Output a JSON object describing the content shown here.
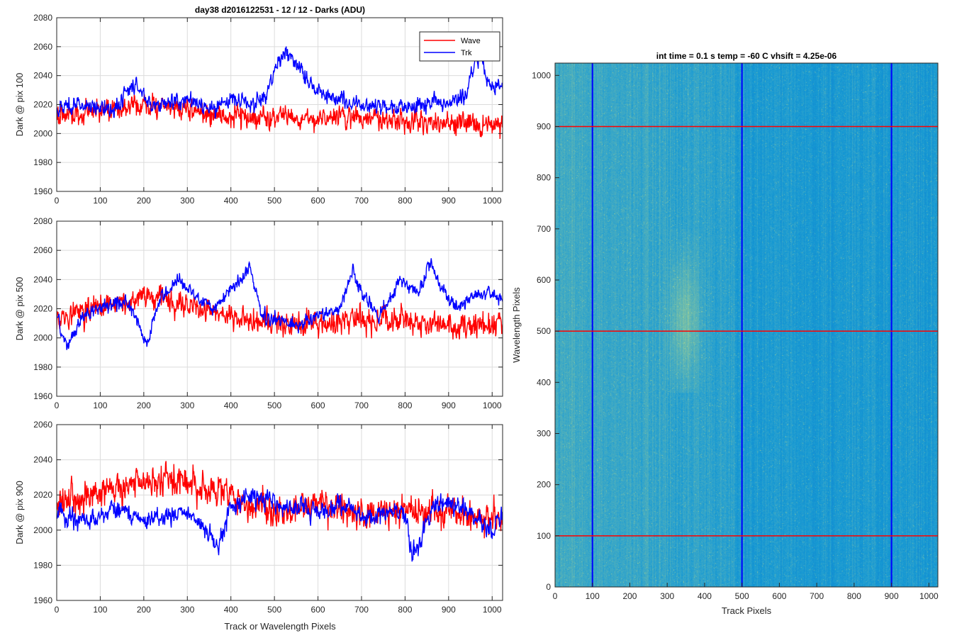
{
  "figure": {
    "title": "day38 d2016122531 - 12 / 12 - Darks (ADU)",
    "xlabel": "Track or Wavelength Pixels"
  },
  "colors": {
    "wave": "#ff0000",
    "trk": "#0000ff",
    "grid": "#dcdcdc",
    "image_base": "#1a8bc4"
  },
  "chart_data": [
    {
      "type": "line",
      "ylabel": "Dark @ pix 100",
      "xlim": [
        0,
        1024
      ],
      "ylim": [
        1960,
        2080
      ],
      "xticks": [
        0,
        100,
        200,
        300,
        400,
        500,
        600,
        700,
        800,
        900,
        1000
      ],
      "yticks": [
        1960,
        1980,
        2000,
        2020,
        2040,
        2060,
        2080
      ],
      "legend": {
        "location": "top-right",
        "entries": [
          "Wave",
          "Trk"
        ]
      },
      "series": [
        {
          "name": "Wave",
          "color": "#ff0000",
          "mean": 2013,
          "noise": 8,
          "anchors": [
            [
              0,
              2012
            ],
            [
              100,
              2016
            ],
            [
              200,
              2020
            ],
            [
              300,
              2016
            ],
            [
              400,
              2012
            ],
            [
              500,
              2010
            ],
            [
              600,
              2010
            ],
            [
              700,
              2012
            ],
            [
              800,
              2010
            ],
            [
              900,
              2008
            ],
            [
              1024,
              2005
            ]
          ]
        },
        {
          "name": "Trk",
          "color": "#0000ff",
          "mean": 2020,
          "noise": 6,
          "anchors": [
            [
              0,
              2018
            ],
            [
              60,
              2020
            ],
            [
              130,
              2017
            ],
            [
              185,
              2035
            ],
            [
              220,
              2018
            ],
            [
              300,
              2024
            ],
            [
              350,
              2016
            ],
            [
              400,
              2024
            ],
            [
              450,
              2020
            ],
            [
              480,
              2025
            ],
            [
              510,
              2052
            ],
            [
              530,
              2055
            ],
            [
              560,
              2045
            ],
            [
              600,
              2028
            ],
            [
              650,
              2025
            ],
            [
              700,
              2020
            ],
            [
              760,
              2018
            ],
            [
              800,
              2020
            ],
            [
              900,
              2022
            ],
            [
              940,
              2025
            ],
            [
              960,
              2050
            ],
            [
              975,
              2055
            ],
            [
              990,
              2032
            ],
            [
              1024,
              2032
            ]
          ]
        }
      ]
    },
    {
      "type": "line",
      "ylabel": "Dark @ pix 500",
      "xlim": [
        0,
        1024
      ],
      "ylim": [
        1960,
        2080
      ],
      "xticks": [
        0,
        100,
        200,
        300,
        400,
        500,
        600,
        700,
        800,
        900,
        1000
      ],
      "yticks": [
        1960,
        1980,
        2000,
        2020,
        2040,
        2060,
        2080
      ],
      "series": [
        {
          "name": "Wave",
          "color": "#ff0000",
          "mean": 2015,
          "noise": 9,
          "anchors": [
            [
              0,
              2015
            ],
            [
              100,
              2020
            ],
            [
              200,
              2028
            ],
            [
              300,
              2022
            ],
            [
              400,
              2015
            ],
            [
              500,
              2008
            ],
            [
              600,
              2010
            ],
            [
              700,
              2012
            ],
            [
              800,
              2012
            ],
            [
              900,
              2008
            ],
            [
              1024,
              2008
            ]
          ]
        },
        {
          "name": "Trk",
          "color": "#0000ff",
          "mean": 2018,
          "noise": 5,
          "anchors": [
            [
              0,
              2015
            ],
            [
              25,
              1995
            ],
            [
              60,
              2015
            ],
            [
              100,
              2020
            ],
            [
              160,
              2025
            ],
            [
              190,
              2008
            ],
            [
              205,
              1995
            ],
            [
              240,
              2030
            ],
            [
              280,
              2040
            ],
            [
              320,
              2028
            ],
            [
              360,
              2020
            ],
            [
              420,
              2040
            ],
            [
              445,
              2048
            ],
            [
              470,
              2015
            ],
            [
              520,
              2012
            ],
            [
              560,
              2008
            ],
            [
              600,
              2015
            ],
            [
              650,
              2020
            ],
            [
              680,
              2045
            ],
            [
              700,
              2030
            ],
            [
              740,
              2015
            ],
            [
              790,
              2040
            ],
            [
              830,
              2030
            ],
            [
              860,
              2052
            ],
            [
              880,
              2035
            ],
            [
              920,
              2020
            ],
            [
              960,
              2030
            ],
            [
              1000,
              2030
            ],
            [
              1024,
              2025
            ]
          ]
        }
      ]
    },
    {
      "type": "line",
      "ylabel": "Dark @ pix 900",
      "xlim": [
        0,
        1024
      ],
      "ylim": [
        1960,
        2060
      ],
      "xticks": [
        0,
        100,
        200,
        300,
        400,
        500,
        600,
        700,
        800,
        900,
        1000
      ],
      "yticks": [
        1960,
        1980,
        2000,
        2020,
        2040,
        2060
      ],
      "series": [
        {
          "name": "Wave",
          "color": "#ff0000",
          "mean": 2018,
          "noise": 9,
          "anchors": [
            [
              0,
              2015
            ],
            [
              100,
              2022
            ],
            [
              200,
              2028
            ],
            [
              300,
              2028
            ],
            [
              400,
              2018
            ],
            [
              500,
              2010
            ],
            [
              600,
              2015
            ],
            [
              700,
              2010
            ],
            [
              800,
              2012
            ],
            [
              900,
              2010
            ],
            [
              1024,
              2005
            ]
          ]
        },
        {
          "name": "Trk",
          "color": "#0000ff",
          "mean": 2010,
          "noise": 6,
          "anchors": [
            [
              0,
              2010
            ],
            [
              50,
              2005
            ],
            [
              100,
              2008
            ],
            [
              150,
              2012
            ],
            [
              200,
              2005
            ],
            [
              250,
              2008
            ],
            [
              300,
              2010
            ],
            [
              350,
              1998
            ],
            [
              370,
              1990
            ],
            [
              400,
              2012
            ],
            [
              450,
              2020
            ],
            [
              500,
              2015
            ],
            [
              550,
              2012
            ],
            [
              600,
              2010
            ],
            [
              650,
              2015
            ],
            [
              700,
              2008
            ],
            [
              750,
              2010
            ],
            [
              800,
              2010
            ],
            [
              815,
              1985
            ],
            [
              830,
              1990
            ],
            [
              860,
              2012
            ],
            [
              900,
              2015
            ],
            [
              950,
              2010
            ],
            [
              1000,
              2000
            ],
            [
              1024,
              2008
            ]
          ]
        }
      ]
    },
    {
      "type": "heatmap",
      "title": "int time = 0.1 s   temp = -60 C   vhsift = 4.25e-06",
      "xlabel": "Track Pixels",
      "ylabel": "Wavelength Pixels",
      "xlim": [
        0,
        1024
      ],
      "ylim": [
        0,
        1024
      ],
      "xticks": [
        0,
        100,
        200,
        300,
        400,
        500,
        600,
        700,
        800,
        900,
        1000
      ],
      "yticks": [
        0,
        100,
        200,
        300,
        400,
        500,
        600,
        700,
        800,
        900,
        1000
      ],
      "vertical_lines": {
        "x": [
          100,
          500,
          900
        ],
        "color": "#0000ff"
      },
      "horizontal_lines": {
        "y": [
          100,
          500,
          900
        ],
        "color": "#ff0000"
      },
      "bright_region": {
        "x_center": 345,
        "y_center": 520,
        "x_width": 40,
        "y_range": [
          380,
          700
        ]
      }
    }
  ]
}
